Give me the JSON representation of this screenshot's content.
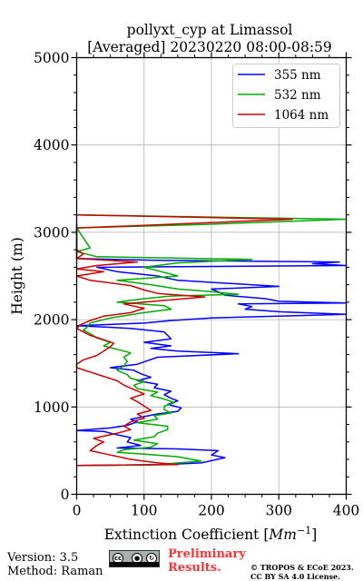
{
  "chart_data": {
    "type": "line",
    "title": "pollyxt_cyp at Limassol",
    "subtitle": "[Averaged] 20230220 08:00-08:59",
    "xlabel": "Extinction Coefficient [Mm⁻¹]",
    "xlabel_main": "Extinction Coefficient",
    "xlabel_unit": "Mm",
    "xlabel_exp": "−1",
    "ylabel": "Height (m)",
    "xlim": [
      0,
      400
    ],
    "ylim": [
      0,
      5000
    ],
    "xticks": [
      0,
      100,
      200,
      300,
      400
    ],
    "yticks": [
      0,
      1000,
      2000,
      3000,
      4000,
      5000
    ],
    "xtick_labels": [
      "0",
      "100",
      "200",
      "300",
      "400"
    ],
    "ytick_labels": [
      "0",
      "1000",
      "2000",
      "3000",
      "4000",
      "5000"
    ],
    "grid": true,
    "legend_position": "top-right",
    "series": [
      {
        "name": "355 nm",
        "color": "#0000ff",
        "points": [
          [
            0,
            330
          ],
          [
            130,
            340
          ],
          [
            185,
            360
          ],
          [
            220,
            420
          ],
          [
            200,
            450
          ],
          [
            210,
            500
          ],
          [
            150,
            520
          ],
          [
            60,
            530
          ],
          [
            95,
            560
          ],
          [
            75,
            600
          ],
          [
            80,
            650
          ],
          [
            55,
            690
          ],
          [
            40,
            720
          ],
          [
            0,
            730
          ],
          [
            50,
            760
          ],
          [
            75,
            790
          ],
          [
            90,
            830
          ],
          [
            80,
            860
          ],
          [
            100,
            890
          ],
          [
            120,
            920
          ],
          [
            150,
            950
          ],
          [
            155,
            990
          ],
          [
            135,
            1030
          ],
          [
            150,
            1070
          ],
          [
            140,
            1100
          ],
          [
            130,
            1140
          ],
          [
            140,
            1180
          ],
          [
            115,
            1220
          ],
          [
            120,
            1260
          ],
          [
            90,
            1300
          ],
          [
            110,
            1340
          ],
          [
            95,
            1380
          ],
          [
            85,
            1420
          ],
          [
            50,
            1450
          ],
          [
            90,
            1490
          ],
          [
            105,
            1530
          ],
          [
            120,
            1570
          ],
          [
            240,
            1610
          ],
          [
            150,
            1640
          ],
          [
            110,
            1670
          ],
          [
            140,
            1700
          ],
          [
            100,
            1740
          ],
          [
            140,
            1780
          ],
          [
            135,
            1820
          ],
          [
            130,
            1860
          ],
          [
            80,
            1900
          ],
          [
            0,
            1930
          ],
          [
            100,
            1960
          ],
          [
            140,
            1990
          ],
          [
            200,
            2020
          ],
          [
            400,
            2060
          ],
          [
            300,
            2090
          ],
          [
            250,
            2120
          ],
          [
            260,
            2150
          ],
          [
            240,
            2180
          ],
          [
            400,
            2190
          ],
          [
            300,
            2210
          ],
          [
            280,
            2240
          ],
          [
            220,
            2280
          ],
          [
            210,
            2320
          ],
          [
            200,
            2350
          ],
          [
            300,
            2380
          ],
          [
            150,
            2450
          ],
          [
            120,
            2500
          ],
          [
            60,
            2550
          ],
          [
            30,
            2600
          ],
          [
            400,
            2620
          ],
          [
            350,
            2640
          ],
          [
            390,
            2660
          ],
          [
            120,
            2680
          ],
          [
            0,
            2700
          ],
          [
            0,
            3100
          ]
        ]
      },
      {
        "name": "532 nm",
        "color": "#00aa00",
        "points": [
          [
            0,
            330
          ],
          [
            120,
            340
          ],
          [
            185,
            380
          ],
          [
            150,
            430
          ],
          [
            100,
            460
          ],
          [
            60,
            480
          ],
          [
            70,
            510
          ],
          [
            110,
            540
          ],
          [
            120,
            580
          ],
          [
            85,
            620
          ],
          [
            115,
            660
          ],
          [
            120,
            700
          ],
          [
            135,
            740
          ],
          [
            135,
            780
          ],
          [
            90,
            820
          ],
          [
            120,
            860
          ],
          [
            115,
            900
          ],
          [
            140,
            930
          ],
          [
            130,
            970
          ],
          [
            130,
            1010
          ],
          [
            145,
            1050
          ],
          [
            130,
            1090
          ],
          [
            110,
            1130
          ],
          [
            120,
            1170
          ],
          [
            90,
            1210
          ],
          [
            85,
            1250
          ],
          [
            100,
            1290
          ],
          [
            80,
            1330
          ],
          [
            75,
            1370
          ],
          [
            60,
            1420
          ],
          [
            70,
            1470
          ],
          [
            75,
            1520
          ],
          [
            70,
            1570
          ],
          [
            80,
            1620
          ],
          [
            60,
            1660
          ],
          [
            40,
            1700
          ],
          [
            50,
            1740
          ],
          [
            30,
            1790
          ],
          [
            20,
            1840
          ],
          [
            10,
            1880
          ],
          [
            15,
            1910
          ],
          [
            20,
            1960
          ],
          [
            50,
            2020
          ],
          [
            100,
            2080
          ],
          [
            140,
            2120
          ],
          [
            130,
            2160
          ],
          [
            60,
            2200
          ],
          [
            100,
            2240
          ],
          [
            140,
            2270
          ],
          [
            240,
            2290
          ],
          [
            200,
            2320
          ],
          [
            150,
            2350
          ],
          [
            110,
            2400
          ],
          [
            60,
            2450
          ],
          [
            150,
            2500
          ],
          [
            120,
            2560
          ],
          [
            100,
            2600
          ],
          [
            150,
            2650
          ],
          [
            260,
            2690
          ],
          [
            30,
            2720
          ],
          [
            0,
            2780
          ],
          [
            20,
            2820
          ],
          [
            0,
            3050
          ],
          [
            190,
            3090
          ],
          [
            400,
            3150
          ],
          [
            0,
            3200
          ]
        ]
      },
      {
        "name": "1064 nm",
        "color": "#cc0000",
        "points": [
          [
            0,
            330
          ],
          [
            150,
            340
          ],
          [
            120,
            360
          ],
          [
            80,
            400
          ],
          [
            50,
            450
          ],
          [
            20,
            500
          ],
          [
            30,
            560
          ],
          [
            40,
            600
          ],
          [
            25,
            640
          ],
          [
            60,
            700
          ],
          [
            80,
            740
          ],
          [
            70,
            780
          ],
          [
            80,
            830
          ],
          [
            100,
            870
          ],
          [
            90,
            920
          ],
          [
            110,
            960
          ],
          [
            100,
            1010
          ],
          [
            90,
            1060
          ],
          [
            80,
            1100
          ],
          [
            100,
            1150
          ],
          [
            85,
            1200
          ],
          [
            70,
            1250
          ],
          [
            60,
            1300
          ],
          [
            40,
            1350
          ],
          [
            20,
            1400
          ],
          [
            0,
            1450
          ],
          [
            0,
            1490
          ],
          [
            10,
            1540
          ],
          [
            30,
            1590
          ],
          [
            40,
            1640
          ],
          [
            50,
            1690
          ],
          [
            55,
            1730
          ],
          [
            40,
            1770
          ],
          [
            20,
            1820
          ],
          [
            10,
            1860
          ],
          [
            0,
            1900
          ],
          [
            5,
            1940
          ],
          [
            20,
            1990
          ],
          [
            40,
            2040
          ],
          [
            80,
            2080
          ],
          [
            100,
            2130
          ],
          [
            70,
            2180
          ],
          [
            130,
            2220
          ],
          [
            190,
            2260
          ],
          [
            120,
            2300
          ],
          [
            100,
            2340
          ],
          [
            80,
            2390
          ],
          [
            20,
            2450
          ],
          [
            0,
            2500
          ],
          [
            40,
            2550
          ],
          [
            0,
            2580
          ],
          [
            30,
            2620
          ],
          [
            90,
            2660
          ],
          [
            0,
            2700
          ],
          [
            10,
            2750
          ],
          [
            0,
            2800
          ],
          [
            0,
            3050
          ],
          [
            100,
            3080
          ],
          [
            320,
            3150
          ],
          [
            0,
            3200
          ]
        ]
      }
    ]
  },
  "footer": {
    "version": "Version: 3.5",
    "method": "Method: Raman",
    "preliminary_line1": "Preliminary",
    "preliminary_line2": "Results.",
    "license_line1": "© TROPOS & ECoE 2023.",
    "license_line2": "CC BY SA 4.0 License."
  },
  "cc_badge": {
    "icons": [
      "cc",
      "by",
      "sa"
    ]
  }
}
